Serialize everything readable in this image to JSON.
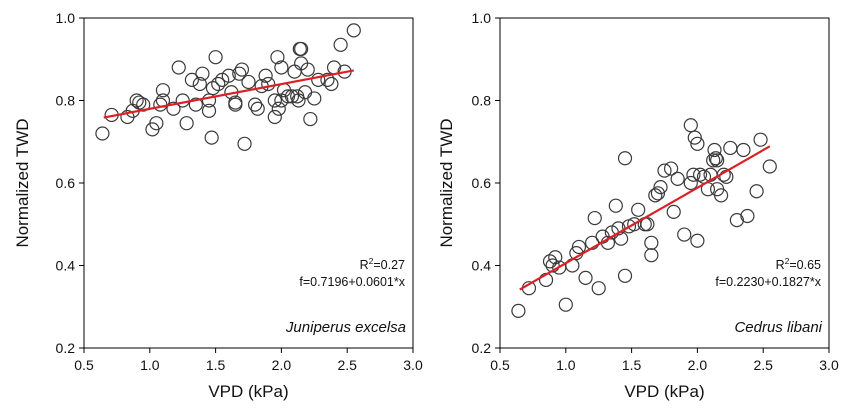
{
  "chart_data": [
    {
      "type": "scatter",
      "xlabel": "VPD (kPa)",
      "ylabel": "Normalized TWD",
      "xlim": [
        0.5,
        3.0
      ],
      "ylim": [
        0.2,
        1.0
      ],
      "xticks": [
        "0.5",
        "1.0",
        "1.5",
        "2.0",
        "2.5",
        "3.0"
      ],
      "yticks": [
        "0.2",
        "0.4",
        "0.6",
        "0.8",
        "1.0"
      ],
      "grid": false,
      "annotation": {
        "r2_prefix": "R",
        "r2_sup": "2",
        "r2_value": "=0.27",
        "equation": "f=0.7196+0.0601*x",
        "species": "Juniperus excelsa"
      },
      "fit": {
        "intercept": 0.7196,
        "slope": 0.0601,
        "x_range": [
          0.65,
          2.55
        ],
        "color": "#dd1f26"
      },
      "points": [
        [
          0.64,
          0.72
        ],
        [
          0.71,
          0.765
        ],
        [
          0.83,
          0.76
        ],
        [
          0.87,
          0.775
        ],
        [
          0.9,
          0.8
        ],
        [
          0.92,
          0.795
        ],
        [
          0.95,
          0.79
        ],
        [
          1.02,
          0.73
        ],
        [
          1.05,
          0.745
        ],
        [
          1.08,
          0.79
        ],
        [
          1.1,
          0.8
        ],
        [
          1.1,
          0.825
        ],
        [
          1.18,
          0.78
        ],
        [
          1.22,
          0.88
        ],
        [
          1.25,
          0.8
        ],
        [
          1.28,
          0.745
        ],
        [
          1.32,
          0.85
        ],
        [
          1.35,
          0.79
        ],
        [
          1.38,
          0.84
        ],
        [
          1.4,
          0.865
        ],
        [
          1.45,
          0.8
        ],
        [
          1.45,
          0.775
        ],
        [
          1.47,
          0.71
        ],
        [
          1.48,
          0.83
        ],
        [
          1.5,
          0.905
        ],
        [
          1.52,
          0.84
        ],
        [
          1.55,
          0.85
        ],
        [
          1.6,
          0.86
        ],
        [
          1.62,
          0.82
        ],
        [
          1.65,
          0.79
        ],
        [
          1.65,
          0.795
        ],
        [
          1.68,
          0.865
        ],
        [
          1.7,
          0.875
        ],
        [
          1.72,
          0.695
        ],
        [
          1.75,
          0.845
        ],
        [
          1.8,
          0.79
        ],
        [
          1.82,
          0.78
        ],
        [
          1.85,
          0.835
        ],
        [
          1.88,
          0.86
        ],
        [
          1.9,
          0.84
        ],
        [
          1.95,
          0.76
        ],
        [
          1.95,
          0.8
        ],
        [
          1.97,
          0.905
        ],
        [
          1.98,
          0.78
        ],
        [
          2.0,
          0.88
        ],
        [
          2.0,
          0.8
        ],
        [
          2.02,
          0.825
        ],
        [
          2.05,
          0.81
        ],
        [
          2.08,
          0.81
        ],
        [
          2.1,
          0.87
        ],
        [
          2.12,
          0.81
        ],
        [
          2.13,
          0.8
        ],
        [
          2.14,
          0.925
        ],
        [
          2.15,
          0.925
        ],
        [
          2.15,
          0.89
        ],
        [
          2.18,
          0.82
        ],
        [
          2.2,
          0.875
        ],
        [
          2.22,
          0.755
        ],
        [
          2.25,
          0.805
        ],
        [
          2.28,
          0.85
        ],
        [
          2.35,
          0.85
        ],
        [
          2.38,
          0.84
        ],
        [
          2.4,
          0.88
        ],
        [
          2.45,
          0.935
        ],
        [
          2.48,
          0.87
        ],
        [
          2.55,
          0.97
        ]
      ]
    },
    {
      "type": "scatter",
      "xlabel": "VPD (kPa)",
      "ylabel": "Normalized TWD",
      "xlim": [
        0.5,
        3.0
      ],
      "ylim": [
        0.2,
        1.0
      ],
      "xticks": [
        "0.5",
        "1.0",
        "1.5",
        "2.0",
        "2.5",
        "3.0"
      ],
      "yticks": [
        "0.2",
        "0.4",
        "0.6",
        "0.8",
        "1.0"
      ],
      "grid": false,
      "annotation": {
        "r2_prefix": "R",
        "r2_sup": "2",
        "r2_value": "=0.65",
        "equation": "f=0.2230+0.1827*x",
        "species": "Cedrus libani"
      },
      "fit": {
        "intercept": 0.223,
        "slope": 0.1827,
        "x_range": [
          0.65,
          2.55
        ],
        "color": "#dd1f26"
      },
      "points": [
        [
          0.64,
          0.29
        ],
        [
          0.72,
          0.345
        ],
        [
          0.85,
          0.365
        ],
        [
          0.88,
          0.41
        ],
        [
          0.9,
          0.4
        ],
        [
          0.92,
          0.42
        ],
        [
          0.95,
          0.395
        ],
        [
          1.0,
          0.305
        ],
        [
          1.05,
          0.4
        ],
        [
          1.08,
          0.43
        ],
        [
          1.1,
          0.445
        ],
        [
          1.15,
          0.37
        ],
        [
          1.2,
          0.455
        ],
        [
          1.22,
          0.515
        ],
        [
          1.25,
          0.345
        ],
        [
          1.28,
          0.47
        ],
        [
          1.32,
          0.455
        ],
        [
          1.35,
          0.48
        ],
        [
          1.38,
          0.545
        ],
        [
          1.4,
          0.49
        ],
        [
          1.42,
          0.465
        ],
        [
          1.45,
          0.375
        ],
        [
          1.45,
          0.66
        ],
        [
          1.48,
          0.495
        ],
        [
          1.52,
          0.5
        ],
        [
          1.55,
          0.535
        ],
        [
          1.6,
          0.5
        ],
        [
          1.62,
          0.5
        ],
        [
          1.65,
          0.425
        ],
        [
          1.65,
          0.455
        ],
        [
          1.68,
          0.57
        ],
        [
          1.7,
          0.575
        ],
        [
          1.72,
          0.59
        ],
        [
          1.75,
          0.63
        ],
        [
          1.8,
          0.635
        ],
        [
          1.82,
          0.53
        ],
        [
          1.85,
          0.61
        ],
        [
          1.9,
          0.475
        ],
        [
          1.95,
          0.74
        ],
        [
          1.95,
          0.6
        ],
        [
          1.97,
          0.62
        ],
        [
          1.98,
          0.71
        ],
        [
          2.0,
          0.695
        ],
        [
          2.0,
          0.46
        ],
        [
          2.02,
          0.62
        ],
        [
          2.05,
          0.615
        ],
        [
          2.08,
          0.585
        ],
        [
          2.1,
          0.62
        ],
        [
          2.12,
          0.655
        ],
        [
          2.13,
          0.68
        ],
        [
          2.14,
          0.66
        ],
        [
          2.15,
          0.655
        ],
        [
          2.15,
          0.585
        ],
        [
          2.18,
          0.57
        ],
        [
          2.2,
          0.62
        ],
        [
          2.22,
          0.615
        ],
        [
          2.25,
          0.685
        ],
        [
          2.3,
          0.51
        ],
        [
          2.35,
          0.68
        ],
        [
          2.38,
          0.52
        ],
        [
          2.45,
          0.58
        ],
        [
          2.48,
          0.705
        ],
        [
          2.55,
          0.64
        ]
      ]
    }
  ]
}
